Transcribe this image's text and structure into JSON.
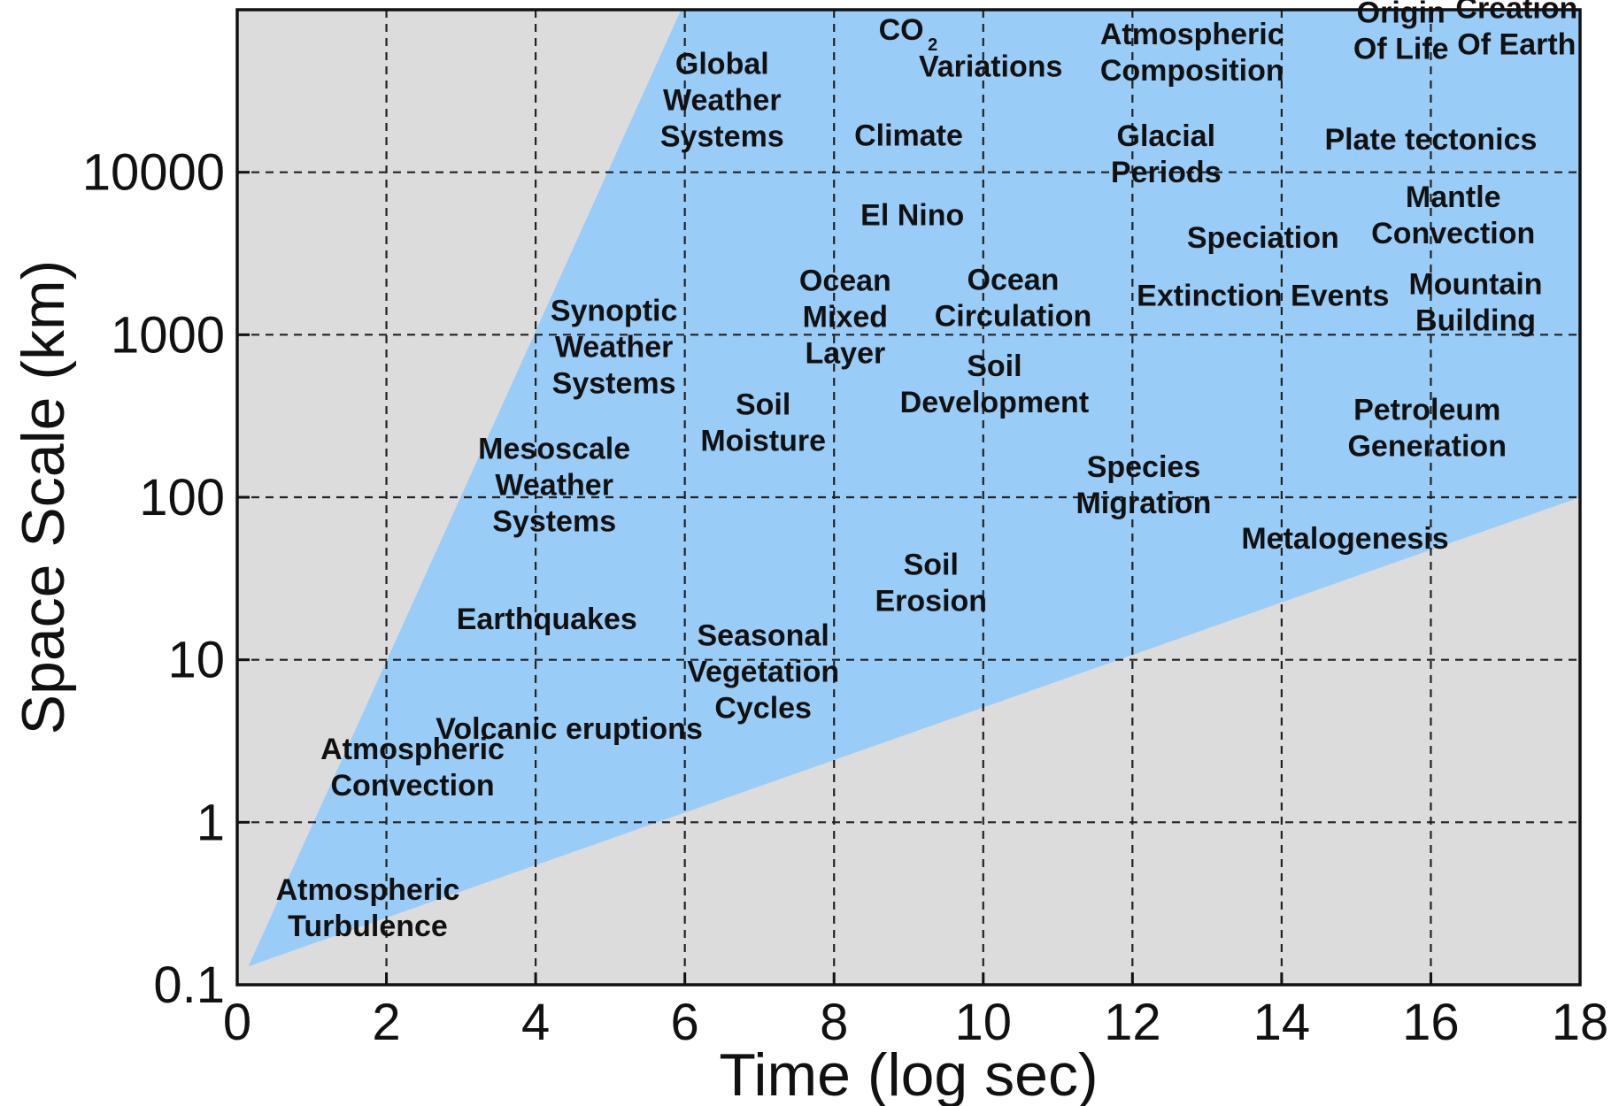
{
  "chart_data": {
    "type": "area",
    "title": "",
    "xlabel": "Time (log sec)",
    "ylabel": "Space Scale (km)",
    "xlim": [
      0,
      18
    ],
    "ylim": [
      0.1,
      100000
    ],
    "y_scale": "log",
    "grid": true,
    "x_ticks": [
      0,
      2,
      4,
      6,
      8,
      10,
      12,
      14,
      16,
      18
    ],
    "x_tick_labels": [
      "0",
      "2",
      "4",
      "6",
      "8",
      "10",
      "12",
      "14",
      "16",
      "18"
    ],
    "y_ticks": [
      0.1,
      1,
      10,
      100,
      1000,
      10000
    ],
    "y_tick_labels": [
      "0.1",
      "1",
      "10",
      "100",
      "1000",
      "10000"
    ],
    "colors": {
      "region": "#99ccf7",
      "background": "#dcdcdc"
    },
    "region": {
      "vertices": [
        {
          "x": 0.15,
          "y": 0.13
        },
        {
          "x": 5.95,
          "y": 100000
        },
        {
          "x": 18,
          "y": 100000
        },
        {
          "x": 18,
          "y": 100
        }
      ]
    },
    "annotations": [
      {
        "lines": [
          "Atmospheric",
          "Turbulence"
        ],
        "x": 1.75,
        "y": 0.3
      },
      {
        "lines": [
          "Atmospheric",
          "Convection"
        ],
        "x": 2.35,
        "y": 2.2
      },
      {
        "lines": [
          "Volcanic eruptions"
        ],
        "x": 4.45,
        "y": 3.8
      },
      {
        "lines": [
          "Earthquakes"
        ],
        "x": 4.15,
        "y": 18
      },
      {
        "lines": [
          "Mesoscale",
          "Weather",
          "Systems"
        ],
        "x": 4.25,
        "y": 120
      },
      {
        "lines": [
          "Synoptic",
          "Weather",
          "Systems"
        ],
        "x": 5.05,
        "y": 850
      },
      {
        "lines": [
          "Global",
          "Weather",
          "Systems"
        ],
        "x": 6.5,
        "y": 28000
      },
      {
        "lines": [
          "Seasonal",
          "Vegetation",
          "Cycles"
        ],
        "x": 7.05,
        "y": 8.5
      },
      {
        "lines": [
          "Soil",
          "Moisture"
        ],
        "x": 7.05,
        "y": 290
      },
      {
        "lines": [
          "Ocean",
          "Mixed",
          "Layer"
        ],
        "x": 8.15,
        "y": 1300
      },
      {
        "lines": [
          "Climate"
        ],
        "x": 9.0,
        "y": 17000
      },
      {
        "lines": [
          "El Nino"
        ],
        "x": 9.05,
        "y": 5500
      },
      {
        "lines": [
          "Soil",
          "Erosion"
        ],
        "x": 9.3,
        "y": 30
      },
      {
        "lines": [
          "Soil",
          "Development"
        ],
        "x": 10.15,
        "y": 500
      },
      {
        "lines": [
          "Ocean",
          "Circulation"
        ],
        "x": 10.4,
        "y": 1700
      },
      {
        "lines": [
          "Variations"
        ],
        "x": 10.1,
        "y": 45000
      },
      {
        "lines": [
          "Atmospheric",
          "Composition"
        ],
        "x": 12.8,
        "y": 55000
      },
      {
        "lines": [
          "Glacial",
          "Periods"
        ],
        "x": 12.45,
        "y": 13000
      },
      {
        "lines": [
          "Species",
          "Migration"
        ],
        "x": 12.15,
        "y": 120
      },
      {
        "lines": [
          "Speciation"
        ],
        "x": 13.75,
        "y": 4000
      },
      {
        "lines": [
          "Extinction Events"
        ],
        "x": 13.75,
        "y": 1750
      },
      {
        "lines": [
          "Metalogenesis"
        ],
        "x": 14.85,
        "y": 56
      },
      {
        "lines": [
          "Origin",
          "Of Life"
        ],
        "x": 15.6,
        "y": 75000
      },
      {
        "lines": [
          "Creation",
          "Of Earth"
        ],
        "x": 17.15,
        "y": 80000
      },
      {
        "lines": [
          "Plate tectonics"
        ],
        "x": 16.0,
        "y": 16000
      },
      {
        "lines": [
          "Mantle",
          "Convection"
        ],
        "x": 16.3,
        "y": 5500
      },
      {
        "lines": [
          "Mountain",
          "Building"
        ],
        "x": 16.6,
        "y": 1600
      },
      {
        "lines": [
          "Petroleum",
          "Generation"
        ],
        "x": 15.95,
        "y": 270
      }
    ],
    "co2_label": {
      "main": "CO",
      "sub": "2",
      "x": 8.9,
      "y": 76000
    }
  }
}
